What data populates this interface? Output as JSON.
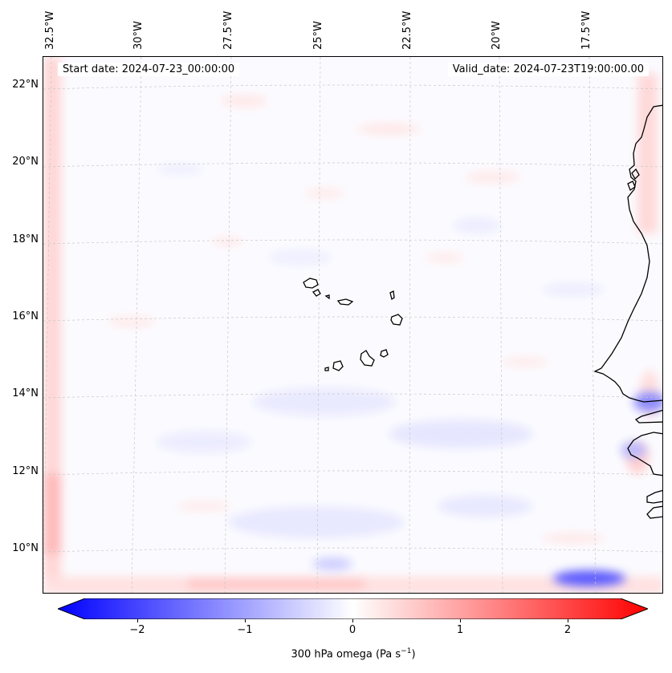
{
  "map": {
    "start_date": "Start date: 2024-07-23_00:00:00",
    "valid_date": "Valid_date: 2024-07-23T19:00:00.00",
    "lon_labels": [
      "32.5°W",
      "30°W",
      "27.5°W",
      "25°W",
      "22.5°W",
      "20°W",
      "17.5°W"
    ],
    "lat_labels": [
      "22°N",
      "20°N",
      "18°N",
      "16°N",
      "14°N",
      "12°N",
      "10°N"
    ],
    "colors": {
      "coast": "#000000",
      "grid": "#c8c8c8",
      "neg": "#0000ff",
      "pos": "#ff0000"
    }
  },
  "colorbar": {
    "ticks": [
      "−2",
      "−1",
      "0",
      "1",
      "2"
    ],
    "tick_values": [
      -2,
      -1,
      0,
      1,
      2
    ],
    "range": [
      -2.5,
      2.5
    ],
    "label": "300 hPa omega (Pa s",
    "label_exp": "−1",
    "label_close": ")"
  }
}
